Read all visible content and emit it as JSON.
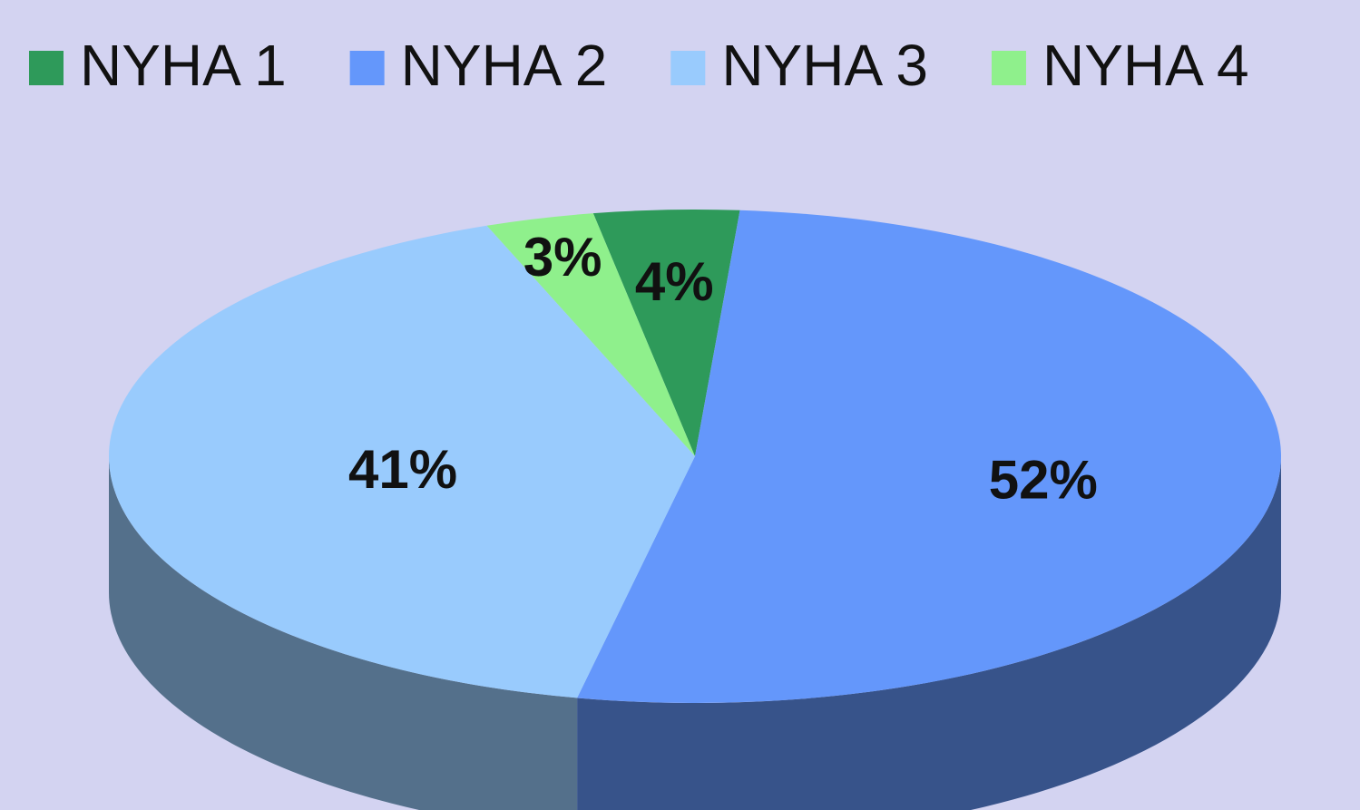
{
  "chart_data": {
    "type": "pie",
    "categories": [
      "NYHA 1",
      "NYHA 2",
      "NYHA 3",
      "NYHA 4"
    ],
    "values": [
      4,
      52,
      41,
      3
    ],
    "value_labels": [
      "4%",
      "52%",
      "41%",
      "3%"
    ],
    "colors": [
      "#2e9a5a",
      "#6497fb",
      "#99cbfd",
      "#8ff08c"
    ],
    "legend": "top"
  }
}
